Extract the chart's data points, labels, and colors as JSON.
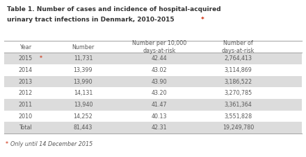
{
  "title_line1": "Table 1. Number of cases and incidence of hospital-acquired",
  "title_line2": "urinary tract infections in Denmark, 2010-2015",
  "title_star": "*",
  "col_headers": [
    "Year",
    "Number",
    "Number per 10,000\ndays-at-risk",
    "Number of\ndays-at-risk"
  ],
  "rows": [
    [
      "2015",
      "*",
      "11,731",
      "42.44",
      "2,764,413"
    ],
    [
      "2014",
      "",
      "13,399",
      "43.02",
      "3,114,869"
    ],
    [
      "2013",
      "",
      "13,990",
      "43.90",
      "3,186,522"
    ],
    [
      "2012",
      "",
      "14,131",
      "43.20",
      "3,270,785"
    ],
    [
      "2011",
      "",
      "13,940",
      "41.47",
      "3,361,364"
    ],
    [
      "2010",
      "",
      "14,252",
      "40.13",
      "3,551,828"
    ],
    [
      "Total",
      "",
      "81,443",
      "42.31",
      "19,249,780"
    ]
  ],
  "footer": "*Only until 14 December 2015",
  "shaded_rows": [
    0,
    2,
    4,
    6
  ],
  "bg_color": "#ffffff",
  "shaded_color": "#dcdcdc",
  "header_text_color": "#5a5a5a",
  "body_text_color": "#5a5a5a",
  "star_color": "#cc2200",
  "title_color": "#333333",
  "title_star_color": "#cc2200",
  "border_color": "#aaaaaa",
  "footer_star_color": "#cc2200",
  "footer_text_color": "#5a5a5a"
}
